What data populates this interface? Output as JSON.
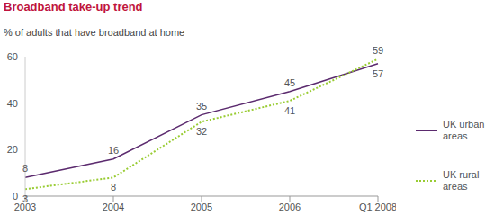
{
  "chart_data": {
    "type": "line",
    "title": "Broadband take-up trend",
    "subtitle": "% of adults that have broadband at home",
    "categories": [
      "2003",
      "2004",
      "2005",
      "2006",
      "Q1 2008"
    ],
    "series": [
      {
        "name": "UK urban areas",
        "color": "#5b2a6e",
        "line_style": "solid",
        "values": [
          8,
          16,
          35,
          45,
          57
        ]
      },
      {
        "name": "UK rural areas",
        "color": "#99cc33",
        "line_style": "dotted",
        "values": [
          3,
          8,
          32,
          41,
          59
        ]
      }
    ],
    "ylim": [
      0,
      60
    ],
    "yticks": [
      0,
      20,
      40,
      60
    ],
    "grid": false,
    "legend": "right",
    "data_labels": true
  }
}
